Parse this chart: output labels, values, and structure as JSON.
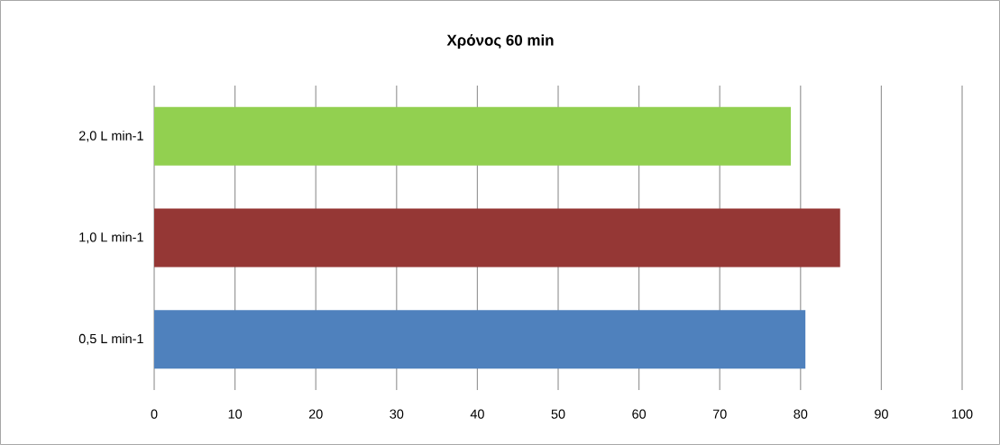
{
  "chart_data": {
    "type": "bar",
    "orientation": "horizontal",
    "title": "Χρόνος 60 min",
    "categories": [
      "2,0 L min-1",
      "1,0 L min-1",
      "0,5 L min-1"
    ],
    "values": [
      78.8,
      84.9,
      80.6
    ],
    "colors": [
      "#92d050",
      "#953735",
      "#4f81bd"
    ],
    "xlim": [
      0,
      100
    ],
    "xticks": [
      0,
      10,
      20,
      30,
      40,
      50,
      60,
      70,
      80,
      90,
      100
    ],
    "grid": "x"
  }
}
